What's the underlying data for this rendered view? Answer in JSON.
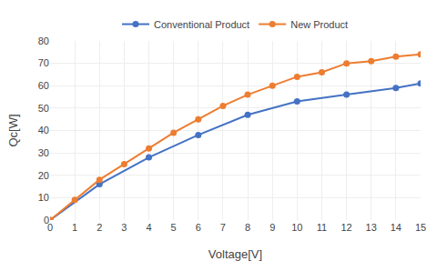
{
  "chart_data": {
    "type": "line",
    "xlabel": "Voltage[V]",
    "ylabel": "Qc[W]",
    "series": [
      {
        "name": "Conventional Product",
        "color": "#4472C4",
        "marker": "circle",
        "x": [
          0,
          2,
          4,
          6,
          8,
          10,
          12,
          14,
          15
        ],
        "values": [
          0,
          16,
          28,
          38,
          47,
          53,
          56,
          59,
          61
        ]
      },
      {
        "name": "New Product",
        "color": "#ED7D31",
        "marker": "circle",
        "x": [
          0,
          1,
          2,
          3,
          4,
          5,
          6,
          7,
          8,
          9,
          10,
          11,
          12,
          13,
          14,
          15
        ],
        "values": [
          0,
          9,
          18,
          25,
          32,
          39,
          45,
          51,
          56,
          60,
          64,
          66,
          70,
          71,
          73,
          74
        ]
      }
    ],
    "xlim": [
      0,
      15
    ],
    "ylim": [
      0,
      80
    ],
    "xticks": [
      0,
      1,
      2,
      3,
      4,
      5,
      6,
      7,
      8,
      9,
      10,
      11,
      12,
      13,
      14,
      15
    ],
    "yticks": [
      0,
      10,
      20,
      30,
      40,
      50,
      60,
      70,
      80
    ],
    "grid": true,
    "legend": "top"
  }
}
